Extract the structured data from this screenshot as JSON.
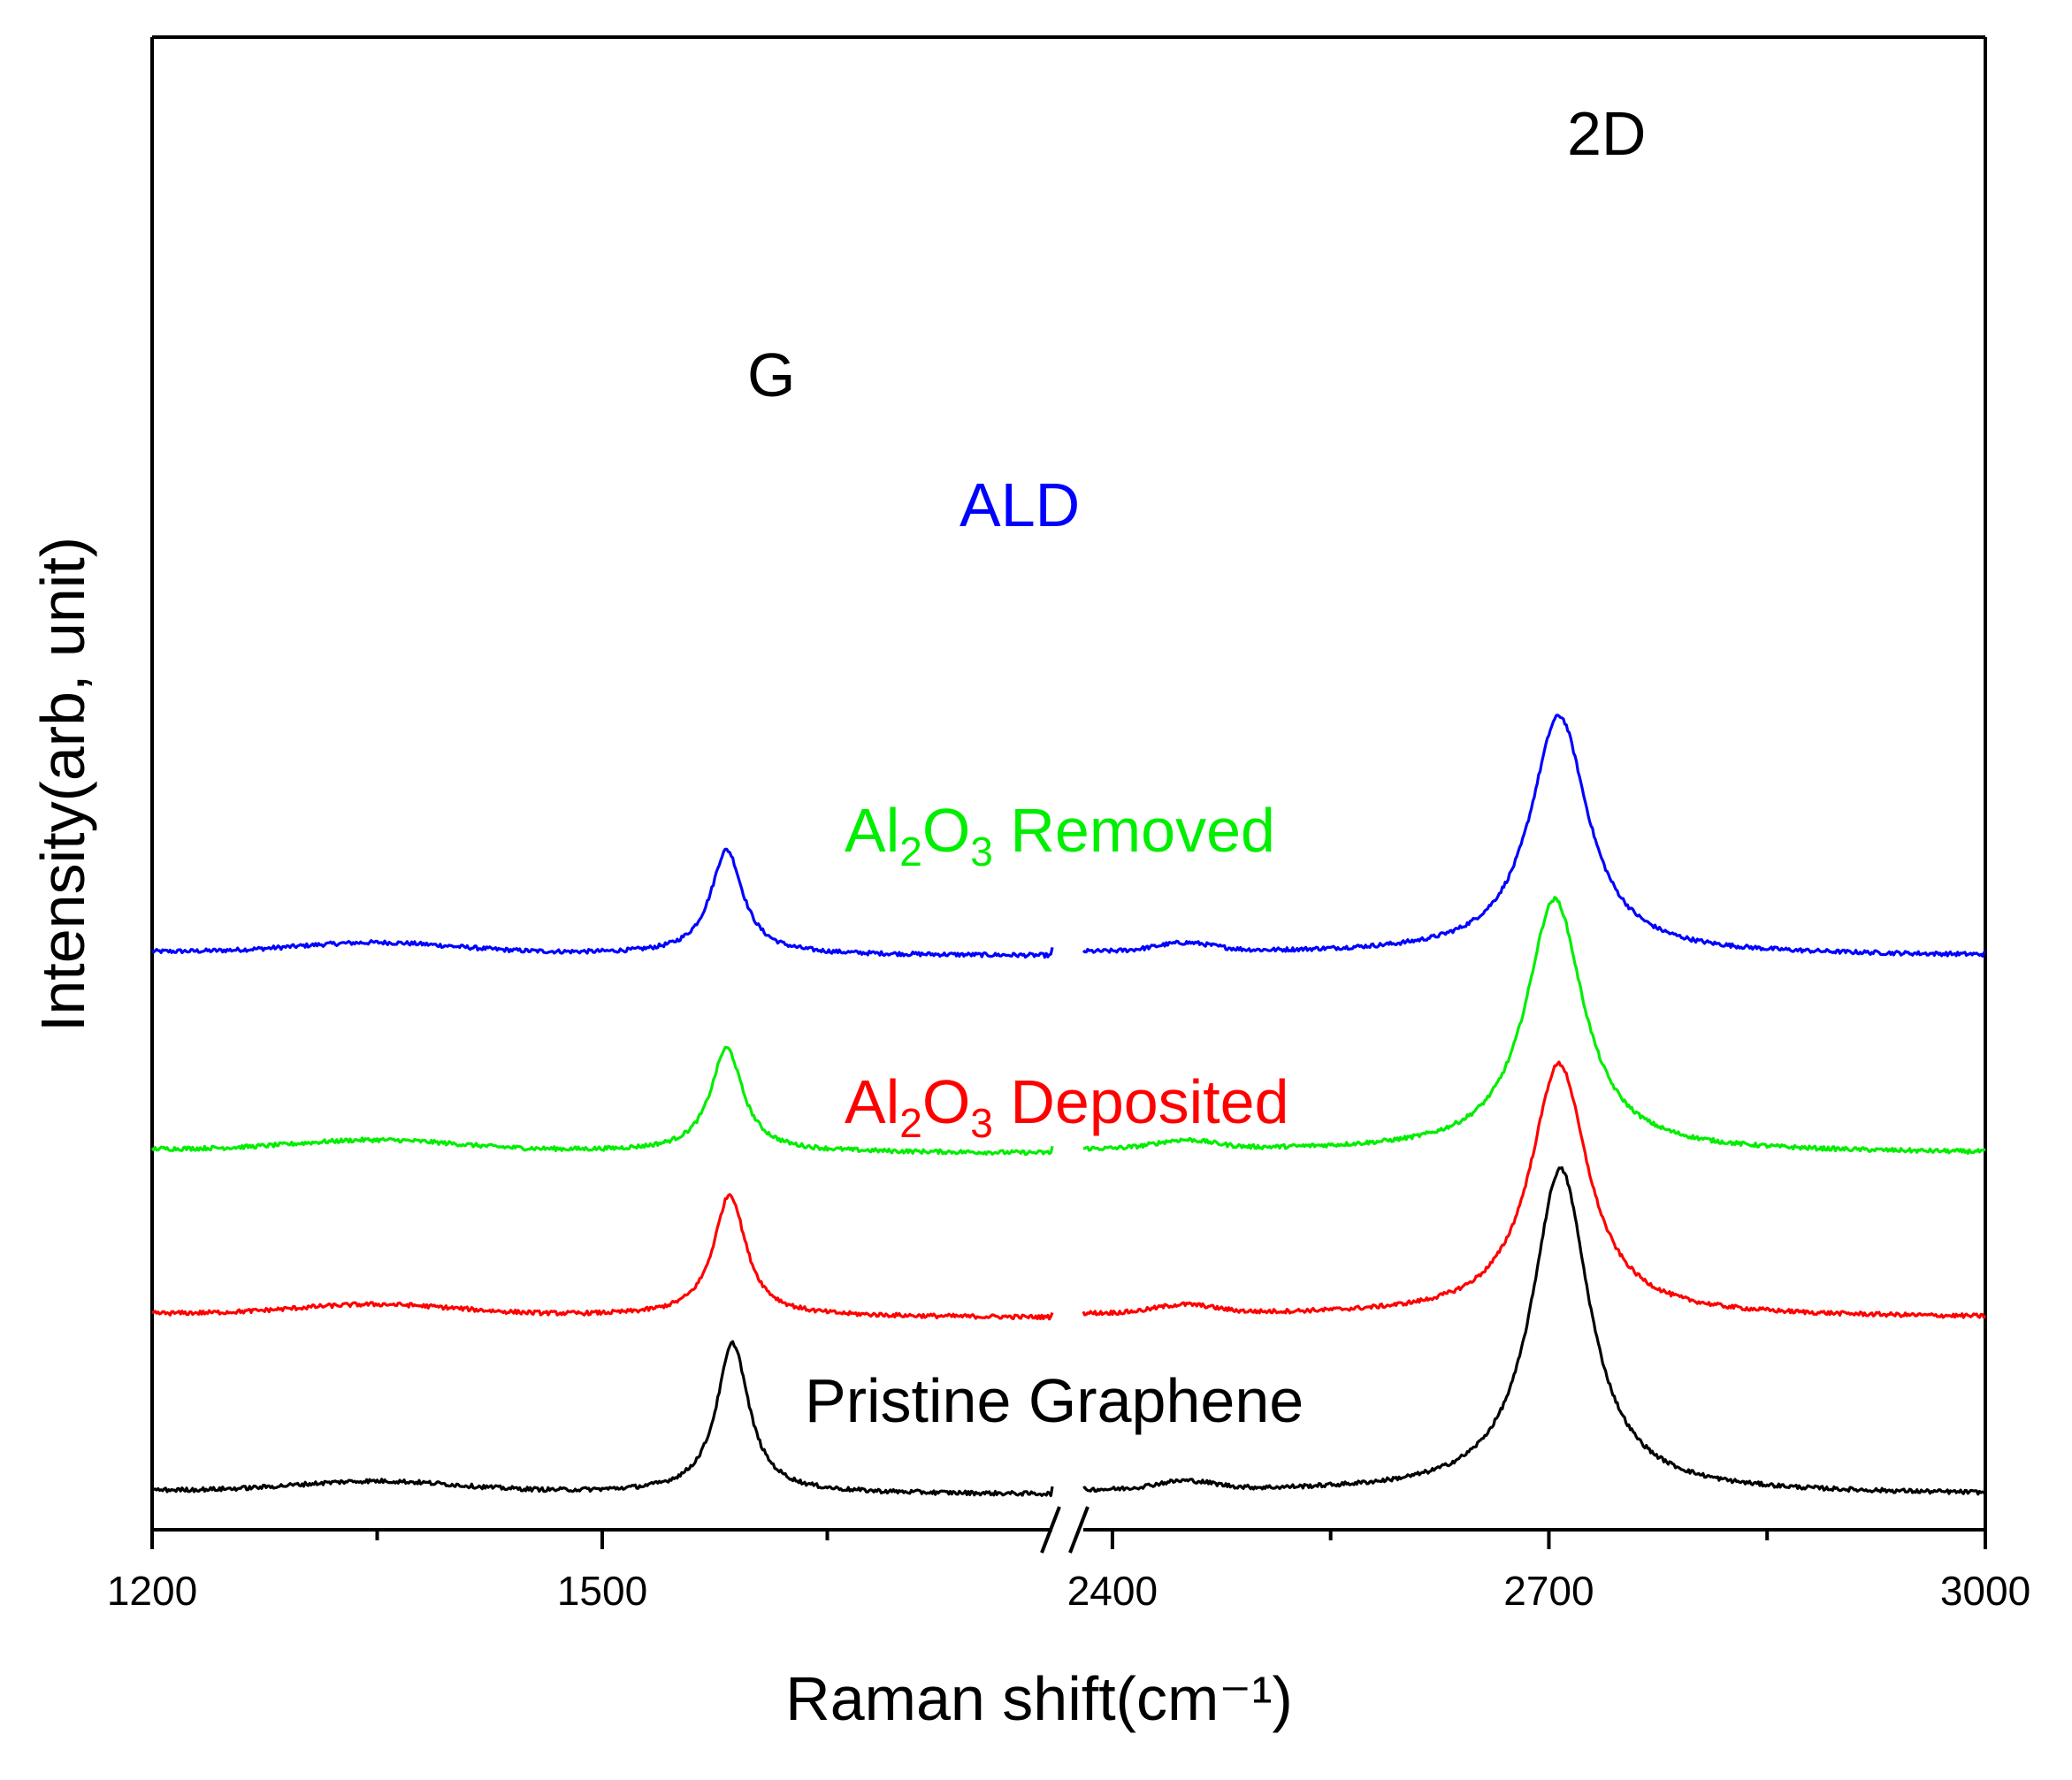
{
  "chart_data": {
    "type": "line",
    "xlabel": "Raman shift(cm⁻¹)",
    "ylabel": "Intensity(arb, unit)",
    "x_axis": {
      "broken": true,
      "segments": [
        {
          "range": [
            1200,
            1800
          ],
          "ticks": [
            1200,
            1500
          ]
        },
        {
          "range": [
            2380,
            3000
          ],
          "ticks": [
            2400,
            2700,
            3000
          ]
        }
      ],
      "tick_labels": [
        "1200",
        "1500",
        "2400",
        "2700",
        "3000"
      ]
    },
    "y_ticks_shown": false,
    "grid": false,
    "peak_labels": [
      {
        "text": "G",
        "x": 1585
      },
      {
        "text": "2D",
        "x": 2707
      }
    ],
    "series": [
      {
        "name": "ALD",
        "label_parts": [
          {
            "text": "ALD",
            "sub": false
          }
        ],
        "color": "#0000ff",
        "baseline": 7.0,
        "g_peak": {
          "x": 1583,
          "height": 1.27
        },
        "twod_peak": {
          "x": 2707,
          "height": 2.9
        },
        "d_shoulder_x": 1350,
        "small_peak_x": 2450
      },
      {
        "name": "Al2O3 Removed",
        "label_parts": [
          {
            "text": "Al",
            "sub": false
          },
          {
            "text": "2",
            "sub": true
          },
          {
            "text": "O",
            "sub": false
          },
          {
            "text": "3",
            "sub": true
          },
          {
            "text": " Removed",
            "sub": false
          }
        ],
        "color": "#00ee00",
        "baseline": 4.6,
        "g_peak": {
          "x": 1583,
          "height": 1.26
        },
        "twod_peak": {
          "x": 2704,
          "height": 3.07
        },
        "d_shoulder_x": 1350,
        "small_peak_x": 2450
      },
      {
        "name": "Al2O3 Deposited",
        "label_parts": [
          {
            "text": "Al",
            "sub": false
          },
          {
            "text": "2",
            "sub": true
          },
          {
            "text": "O",
            "sub": false
          },
          {
            "text": "3",
            "sub": true
          },
          {
            "text": " Deposited",
            "sub": false
          }
        ],
        "color": "#ff0000",
        "baseline": 2.6,
        "g_peak": {
          "x": 1585,
          "height": 1.48
        },
        "twod_peak": {
          "x": 2707,
          "height": 3.07
        },
        "d_shoulder_x": 1350,
        "small_peak_x": 2450
      },
      {
        "name": "Pristine Graphene",
        "label_parts": [
          {
            "text": "Pristine Graphene",
            "sub": false
          }
        ],
        "color": "#000000",
        "baseline": 0.45,
        "g_peak": {
          "x": 1587,
          "height": 1.82
        },
        "twod_peak": {
          "x": 2708,
          "height": 3.94
        },
        "d_shoulder_x": 1350,
        "small_peak_x": 2450
      }
    ]
  }
}
